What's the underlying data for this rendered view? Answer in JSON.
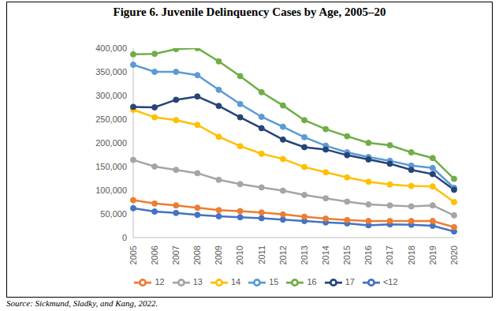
{
  "chart_data": {
    "type": "line",
    "title": "Figure 6. Juvenile Delinquency Cases by Age, 2005–20",
    "source": "Source: Sickmund, Sladky, and Kang, 2022.",
    "categories": [
      "2005",
      "2006",
      "2007",
      "2008",
      "2009",
      "2010",
      "2011",
      "2012",
      "2013",
      "2014",
      "2015",
      "2016",
      "2017",
      "2018",
      "2019",
      "2020"
    ],
    "series": [
      {
        "name": "<12",
        "color": "#4472c4",
        "values": [
          62000,
          55000,
          52000,
          48000,
          45000,
          43000,
          41000,
          38000,
          35000,
          32000,
          30000,
          26000,
          28000,
          27000,
          25000,
          13000
        ]
      },
      {
        "name": "12",
        "color": "#ed7d31",
        "values": [
          79000,
          72000,
          68000,
          63000,
          58000,
          56000,
          53000,
          49000,
          44000,
          40000,
          37000,
          35000,
          35000,
          35000,
          35000,
          22000
        ]
      },
      {
        "name": "13",
        "color": "#a5a5a5",
        "values": [
          164000,
          150000,
          143000,
          136000,
          122000,
          113000,
          106000,
          99000,
          90000,
          83000,
          76000,
          70000,
          68000,
          66000,
          68000,
          47000
        ]
      },
      {
        "name": "14",
        "color": "#ffc000",
        "values": [
          270000,
          254000,
          248000,
          238000,
          213000,
          193000,
          177000,
          166000,
          149000,
          138000,
          127000,
          118000,
          112000,
          109000,
          108000,
          75000
        ]
      },
      {
        "name": "15",
        "color": "#5b9bd5",
        "values": [
          365000,
          350000,
          350000,
          343000,
          312000,
          282000,
          255000,
          234000,
          212000,
          194000,
          180000,
          170000,
          162000,
          152000,
          147000,
          105000
        ]
      },
      {
        "name": "16",
        "color": "#70ad47",
        "values": [
          387000,
          388000,
          398000,
          400000,
          372000,
          341000,
          307000,
          279000,
          248000,
          229000,
          214000,
          200000,
          195000,
          180000,
          168000,
          124000
        ]
      },
      {
        "name": "17",
        "color": "#264478",
        "values": [
          276000,
          275000,
          291000,
          298000,
          278000,
          254000,
          231000,
          207000,
          191000,
          186000,
          174000,
          165000,
          156000,
          143000,
          134000,
          101000
        ]
      }
    ],
    "ylim": [
      0,
      400000
    ],
    "yticks": [
      0,
      {
        "value": 50000,
        "label": "50,000"
      },
      {
        "value": 100000,
        "label": "100,000"
      },
      {
        "value": 150000,
        "label": "150,000"
      },
      {
        "value": 200000,
        "label": "200,000"
      },
      {
        "value": 250000,
        "label": "250,000"
      },
      {
        "value": 300000,
        "label": "300,000"
      },
      {
        "value": 350000,
        "label": "350,000"
      },
      {
        "value": 400000,
        "label": "400,000"
      }
    ],
    "grid": false,
    "legend": "bottom",
    "marker": "circle"
  }
}
